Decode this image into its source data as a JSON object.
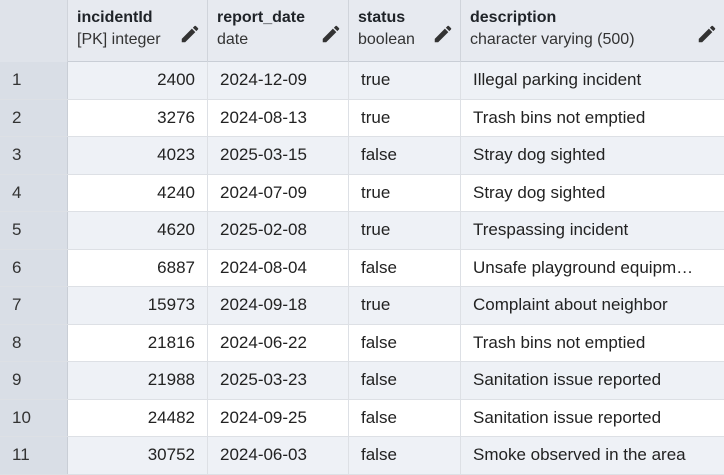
{
  "columns": [
    {
      "name": "incidentId",
      "type": "[PK] integer"
    },
    {
      "name": "report_date",
      "type": "date"
    },
    {
      "name": "status",
      "type": "boolean"
    },
    {
      "name": "description",
      "type": "character varying (500)"
    }
  ],
  "rows": [
    {
      "num": "1",
      "incidentId": "2400",
      "report_date": "2024-12-09",
      "status": "true",
      "description": "Illegal parking incident"
    },
    {
      "num": "2",
      "incidentId": "3276",
      "report_date": "2024-08-13",
      "status": "true",
      "description": "Trash bins not emptied"
    },
    {
      "num": "3",
      "incidentId": "4023",
      "report_date": "2025-03-15",
      "status": "false",
      "description": "Stray dog sighted"
    },
    {
      "num": "4",
      "incidentId": "4240",
      "report_date": "2024-07-09",
      "status": "true",
      "description": "Stray dog sighted"
    },
    {
      "num": "5",
      "incidentId": "4620",
      "report_date": "2025-02-08",
      "status": "true",
      "description": "Trespassing incident"
    },
    {
      "num": "6",
      "incidentId": "6887",
      "report_date": "2024-08-04",
      "status": "false",
      "description": "Unsafe playground equipm…"
    },
    {
      "num": "7",
      "incidentId": "15973",
      "report_date": "2024-09-18",
      "status": "true",
      "description": "Complaint about neighbor"
    },
    {
      "num": "8",
      "incidentId": "21816",
      "report_date": "2024-06-22",
      "status": "false",
      "description": "Trash bins not emptied"
    },
    {
      "num": "9",
      "incidentId": "21988",
      "report_date": "2025-03-23",
      "status": "false",
      "description": "Sanitation issue reported"
    },
    {
      "num": "10",
      "incidentId": "24482",
      "report_date": "2024-09-25",
      "status": "false",
      "description": "Sanitation issue reported"
    },
    {
      "num": "11",
      "incidentId": "30752",
      "report_date": "2024-06-03",
      "status": "false",
      "description": "Smoke observed in the area"
    }
  ],
  "icons": {
    "edit": "pencil-icon"
  }
}
